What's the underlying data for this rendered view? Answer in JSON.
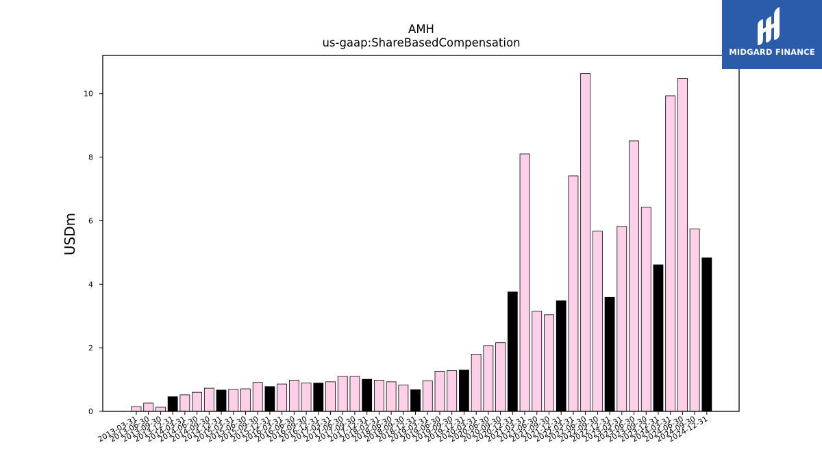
{
  "logo": {
    "text": "MIDGARD FINANCE",
    "background": "#2a5caa"
  },
  "colors": {
    "quarter_fill": "#ffd0e8",
    "year_end_fill": "#000000",
    "edge": "#000000"
  },
  "chart_data": {
    "type": "bar",
    "title": "AMH",
    "subtitle": "us-gaap:ShareBasedCompensation",
    "xlabel": "",
    "ylabel": "USDm",
    "ylim": [
      0,
      11.2
    ],
    "yticks": [
      0,
      2,
      4,
      6,
      8,
      10
    ],
    "grid": false,
    "categories": [
      "2013-03-31",
      "2013-06-30",
      "2013-09-30",
      "2013-12-31",
      "2014-03-31",
      "2014-06-30",
      "2014-09-30",
      "2014-12-31",
      "2015-03-31",
      "2015-06-30",
      "2015-09-30",
      "2015-12-31",
      "2016-03-31",
      "2016-06-30",
      "2016-09-30",
      "2016-12-31",
      "2017-03-31",
      "2017-06-30",
      "2017-09-30",
      "2017-12-31",
      "2018-03-31",
      "2018-06-30",
      "2018-09-30",
      "2018-12-31",
      "2019-03-31",
      "2019-06-30",
      "2019-09-30",
      "2019-12-31",
      "2020-03-31",
      "2020-06-30",
      "2020-09-30",
      "2020-12-31",
      "2021-03-31",
      "2021-06-30",
      "2021-09-30",
      "2021-12-31",
      "2022-03-31",
      "2022-06-30",
      "2022-09-30",
      "2022-12-31",
      "2023-03-31",
      "2023-06-30",
      "2023-09-30",
      "2023-12-31",
      "2024-03-31",
      "2024-06-30",
      "2024-09-30",
      "2024-12-31"
    ],
    "values": [
      0.15,
      0.26,
      0.13,
      0.46,
      0.52,
      0.6,
      0.73,
      0.67,
      0.69,
      0.71,
      0.91,
      0.78,
      0.86,
      0.98,
      0.89,
      0.89,
      0.93,
      1.1,
      1.1,
      1.01,
      0.98,
      0.93,
      0.83,
      0.68,
      0.96,
      1.26,
      1.28,
      1.3,
      1.8,
      2.07,
      2.16,
      3.76,
      8.1,
      3.15,
      3.04,
      3.48,
      7.41,
      10.63,
      5.67,
      3.59,
      5.82,
      8.51,
      6.42,
      4.61,
      9.93,
      10.48,
      5.74,
      4.83
    ],
    "year_end": [
      false,
      false,
      false,
      true,
      false,
      false,
      false,
      true,
      false,
      false,
      false,
      true,
      false,
      false,
      false,
      true,
      false,
      false,
      false,
      true,
      false,
      false,
      false,
      true,
      false,
      false,
      false,
      true,
      false,
      false,
      false,
      true,
      false,
      false,
      false,
      true,
      false,
      false,
      false,
      true,
      false,
      false,
      false,
      true,
      false,
      false,
      false,
      true
    ]
  }
}
